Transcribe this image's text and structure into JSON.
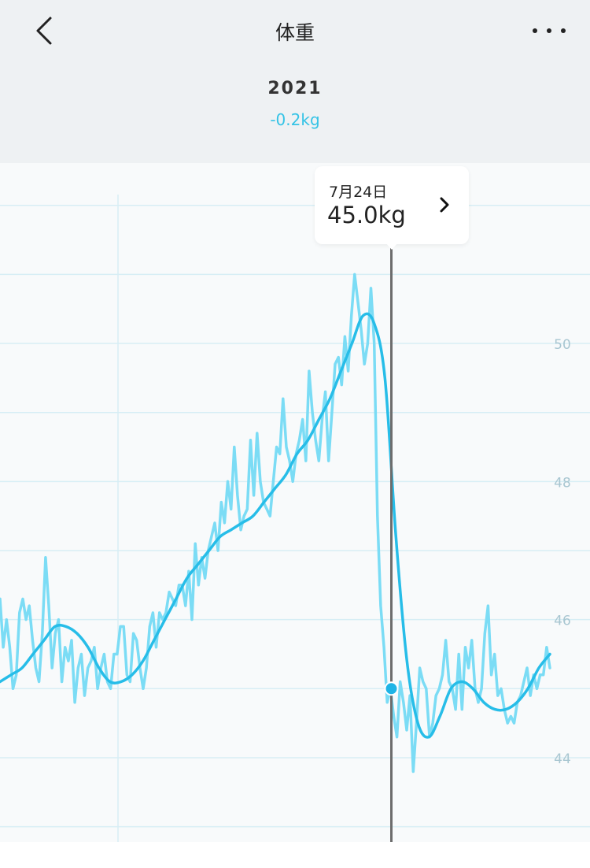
{
  "header": {
    "title": "体重",
    "back_icon": "chevron-left-icon",
    "more_icon": "more-horizontal-icon"
  },
  "summary": {
    "period": "2021",
    "change": "-0.2kg"
  },
  "tooltip": {
    "date": "7月24日",
    "value": "45.0kg",
    "icon": "chevron-right-icon"
  },
  "colors": {
    "raw_line": "#7bdcf5",
    "trend_line": "#27bde8",
    "cursor": "#6d6d6d",
    "grid": "#d7eef5",
    "axis_label": "#a8c6d1",
    "change_text": "#34c3e6"
  },
  "chart_data": {
    "type": "line",
    "y_ticks": [
      44,
      46,
      48,
      50
    ],
    "ylim": [
      43.0,
      52.5
    ],
    "grid": true,
    "selected": {
      "date": "7月24日",
      "value": 45.0
    },
    "series": [
      {
        "values": [
          46.3,
          45.6,
          46.0,
          45.6,
          45.0,
          45.2,
          46.1,
          46.3,
          46.0,
          46.2,
          45.7,
          45.3,
          45.1,
          45.8,
          46.9,
          46.2,
          45.3,
          45.8,
          46.0,
          45.1,
          45.6,
          45.4,
          45.7,
          44.8,
          45.3,
          45.5,
          44.9,
          45.3,
          45.4,
          45.6,
          45.0,
          45.3,
          45.5,
          45.1,
          45.0,
          45.5,
          45.5,
          45.9,
          45.9,
          45.2,
          45.1,
          45.8,
          45.7,
          45.3,
          45.0,
          45.3,
          45.9,
          46.1,
          45.6,
          46.1,
          46.0,
          46.1,
          46.4,
          46.3,
          46.2,
          46.5,
          46.5,
          46.2,
          46.7,
          46.0,
          47.1,
          46.5,
          46.9,
          46.6,
          47.0,
          47.2,
          47.4,
          47.0,
          47.7,
          47.4,
          48.0,
          47.6,
          48.5,
          47.8,
          47.3,
          47.5,
          47.6,
          48.6,
          47.8,
          48.7,
          48.0,
          47.7,
          47.6,
          47.5,
          48.0,
          48.5,
          48.4,
          49.2,
          48.5,
          48.3,
          48.0,
          48.4,
          48.6,
          48.9,
          48.3,
          49.6,
          49.0,
          48.6,
          48.3,
          48.9,
          49.3,
          48.3,
          49.0,
          49.7,
          49.8,
          49.4,
          50.1,
          49.6,
          50.4,
          51.0,
          50.6,
          50.2,
          49.7,
          50.0,
          50.8,
          50.0,
          47.5,
          46.2,
          45.6,
          44.8,
          45.0,
          44.6,
          44.3,
          45.1,
          44.8,
          44.4,
          44.9,
          43.8,
          44.5,
          45.3,
          45.1,
          45.0,
          44.3,
          44.5,
          44.9,
          45.0,
          45.2,
          45.7,
          45.1,
          45.0,
          44.7,
          45.5,
          44.7,
          45.6,
          45.3,
          45.7,
          45.0,
          44.8,
          45.0,
          45.8,
          46.2,
          45.2,
          45.5,
          44.9,
          45.0,
          44.7,
          44.5,
          44.6,
          44.5,
          44.8,
          44.9,
          45.1,
          45.3,
          44.9,
          45.2,
          45.0,
          45.2,
          45.2,
          45.6,
          45.3
        ]
      },
      {
        "values": [
          45.1,
          45.2,
          45.3,
          45.5,
          45.7,
          45.9,
          45.9,
          45.8,
          45.6,
          45.3,
          45.1,
          45.1,
          45.2,
          45.4,
          45.7,
          46.0,
          46.3,
          46.6,
          46.8,
          47.0,
          47.2,
          47.3,
          47.4,
          47.5,
          47.7,
          47.9,
          48.1,
          48.4,
          48.6,
          48.9,
          49.2,
          49.6,
          50.0,
          50.4,
          50.3,
          49.5,
          47.2,
          45.4,
          44.5,
          44.3,
          44.6,
          45.0,
          45.1,
          45.0,
          44.8,
          44.7,
          44.7,
          44.8,
          45.0,
          45.3,
          45.5
        ]
      }
    ]
  }
}
